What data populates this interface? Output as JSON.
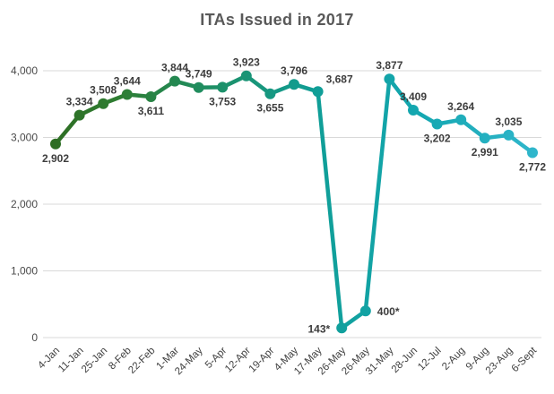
{
  "chart_data": {
    "type": "line",
    "title": "ITAs Issued in 2017",
    "x": [
      "4-Jan",
      "11-Jan",
      "25-Jan",
      "8-Feb",
      "22-Feb",
      "1-Mar",
      "24-May",
      "5-Apr",
      "12-Apr",
      "19-Apr",
      "4-May",
      "17-May",
      "26-May",
      "26-May",
      "31-May",
      "28-Jun",
      "12-Jul",
      "2-Aug",
      "9-Aug",
      "23-Aug",
      "6-Sept"
    ],
    "series": [
      {
        "name": "ITAs issued",
        "values": [
          2902,
          3334,
          3508,
          3644,
          3611,
          3844,
          3749,
          3753,
          3923,
          3655,
          3796,
          3687,
          143,
          400,
          3877,
          3409,
          3202,
          3264,
          2991,
          3035,
          2772
        ]
      }
    ],
    "point_labels": [
      "2,902",
      "3,334",
      "3,508",
      "3,644",
      "3,611",
      "3,844",
      "3,749",
      "3,753",
      "3,923",
      "3,655",
      "3,796",
      "3,687",
      "143*",
      "400*",
      "3,877",
      "3,409",
      "3,202",
      "3,264",
      "2,991",
      "3,035",
      "2,772"
    ],
    "label_positions": [
      "below",
      "above",
      "above",
      "above",
      "below",
      "above",
      "above",
      "below",
      "above",
      "below",
      "above",
      "above-right",
      "left",
      "right",
      "above",
      "above",
      "below",
      "above",
      "below",
      "above",
      "below"
    ],
    "ylim": [
      0,
      4000
    ],
    "yticks": [
      0,
      1000,
      2000,
      3000,
      4000
    ],
    "ytick_labels": [
      "0",
      "1,000",
      "2,000",
      "3,000",
      "4,000"
    ],
    "grid": "horizontal",
    "legend": "none",
    "colors": {
      "background": "#ffffff",
      "title": "#595959",
      "data_label": "#3d3d3d",
      "ytick_label": "#4a4a4a",
      "xtick_label": "#404040",
      "gridline": "#d9d9d9",
      "line_gradient": [
        {
          "offset": 0.0,
          "color": "#2e6b21"
        },
        {
          "offset": 0.15,
          "color": "#2e7d32"
        },
        {
          "offset": 0.35,
          "color": "#1d9068"
        },
        {
          "offset": 0.55,
          "color": "#109e97"
        },
        {
          "offset": 0.75,
          "color": "#14a7b0"
        },
        {
          "offset": 1.0,
          "color": "#31b7cd"
        }
      ]
    }
  }
}
